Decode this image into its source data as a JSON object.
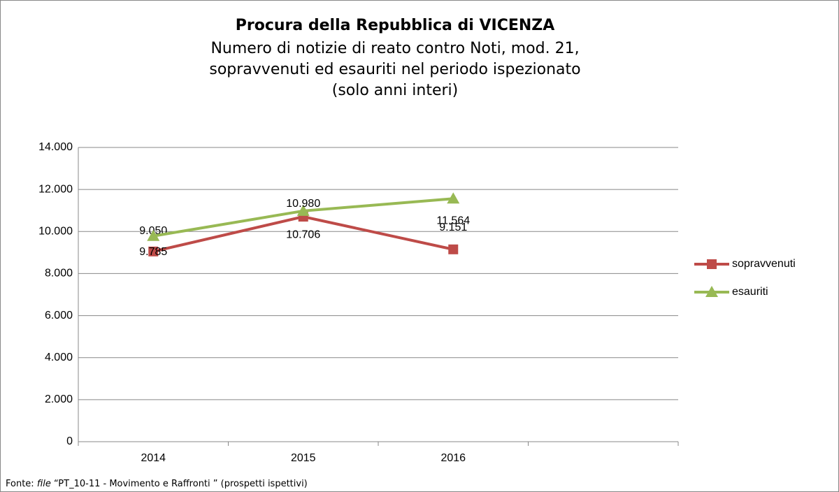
{
  "chart_data": {
    "type": "line",
    "title": "Procura della Repubblica di VICENZA",
    "subtitle": [
      "Numero di notizie di reato contro Noti, mod. 21,",
      "sopravvenuti ed esauriti nel periodo ispezionato",
      "(solo anni interi)"
    ],
    "categories": [
      "2014",
      "2015",
      "2016",
      null
    ],
    "series": [
      {
        "name": "sopravvenuti",
        "color": "#be4b48",
        "marker": "square",
        "values": [
          9050,
          10706,
          9151,
          null
        ],
        "value_labels": [
          "9.050",
          "10.706",
          "9.151",
          null
        ]
      },
      {
        "name": "esauriti",
        "color": "#98b954",
        "marker": "triangle",
        "values": [
          9785,
          10980,
          11564,
          null
        ],
        "value_labels": [
          "9.785",
          "10.980",
          "11.564",
          null
        ]
      }
    ],
    "ylim": [
      0,
      14000
    ],
    "yticks": [
      0,
      {
        "value": 2000,
        "label": "2.000"
      },
      {
        "value": 4000,
        "label": "4.000"
      },
      {
        "value": 6000,
        "label": "6.000"
      },
      {
        "value": 8000,
        "label": "8.000"
      },
      {
        "value": 10000,
        "label": "10.000"
      },
      {
        "value": 12000,
        "label": "12.000"
      },
      {
        "value": 14000,
        "label": "14.000"
      }
    ],
    "grid": true,
    "legend": "right",
    "source": [
      "Fonte: ",
      "file",
      " “PT_10-11 - Movimento e Raffronti ” (prospetti ispettivi)"
    ]
  }
}
